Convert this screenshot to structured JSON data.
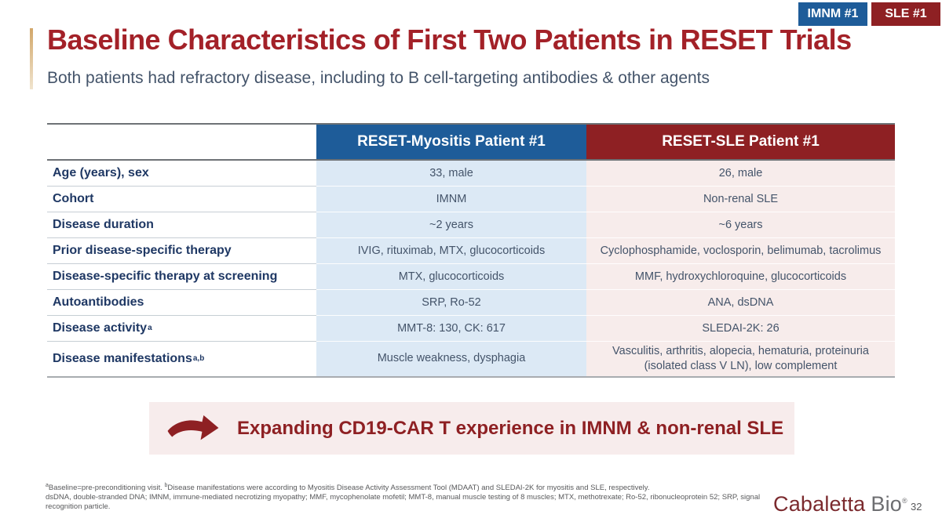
{
  "badges": [
    {
      "label": "IMNM #1",
      "color": "#1E5C99"
    },
    {
      "label": "SLE #1",
      "color": "#8E2023"
    }
  ],
  "header": {
    "title": "Baseline Characteristics of First Two Patients in RESET Trials",
    "subtitle": "Both patients had refractory disease, including to B cell-targeting antibodies & other agents"
  },
  "table": {
    "columns": {
      "label": "",
      "myositis": "RESET-Myositis Patient #1",
      "sle": "RESET-SLE Patient #1"
    },
    "rows": [
      {
        "label": "Age (years), sex",
        "sup": "",
        "myositis": "33, male",
        "sle": "26, male"
      },
      {
        "label": "Cohort",
        "sup": "",
        "myositis": "IMNM",
        "sle": "Non-renal SLE"
      },
      {
        "label": "Disease duration",
        "sup": "",
        "myositis": "~2 years",
        "sle": "~6 years"
      },
      {
        "label": "Prior disease-specific therapy",
        "sup": "",
        "myositis": "IVIG, rituximab, MTX, glucocorticoids",
        "sle": "Cyclophosphamide, voclosporin, belimumab, tacrolimus"
      },
      {
        "label": "Disease-specific therapy at screening",
        "sup": "",
        "myositis": "MTX, glucocorticoids",
        "sle": "MMF, hydroxychloroquine, glucocorticoids"
      },
      {
        "label": "Autoantibodies",
        "sup": "",
        "myositis": "SRP, Ro-52",
        "sle": "ANA, dsDNA"
      },
      {
        "label": "Disease activity",
        "sup": "a",
        "myositis": "MMT-8: 130, CK: 617",
        "sle": "SLEDAI-2K: 26"
      },
      {
        "label": "Disease manifestations",
        "sup": "a,b",
        "myositis": "Muscle weakness, dysphagia",
        "sle": "Vasculitis, arthritis, alopecia, hematuria, proteinuria (isolated class V LN), low complement"
      }
    ]
  },
  "callout": {
    "text": "Expanding CD19-CAR T experience in IMNM & non-renal SLE",
    "arrow_icon": "swoosh-arrow-right",
    "background": "#F7ECEC",
    "text_color": "#8E2023"
  },
  "footnotes": {
    "sup_a": "a",
    "line1_a": "Baseline=pre-preconditioning visit. ",
    "sup_b": "b",
    "line1_b": "Disease manifestations were according to Myositis Disease Activity Assessment Tool (MDAAT) and SLEDAI-2K for myositis and SLE, respectively.",
    "line2": "dsDNA, double-stranded DNA; IMNM, immune-mediated necrotizing myopathy; MMF, mycophenolate mofetil; MMT-8, manual muscle testing of 8 muscles; MTX, methotrexate; Ro-52, ribonucleoprotein 52; SRP, signal recognition particle."
  },
  "footer": {
    "logo_primary": "Cabaletta",
    "logo_secondary": "Bio",
    "registered_mark": "®",
    "page_number": "32"
  },
  "colors": {
    "header_blue": "#1E5C99",
    "header_red": "#8E2023",
    "title_red": "#A32128",
    "label_navy": "#1F3864",
    "body_text": "#44546A",
    "light_blue_cell": "#DCE9F5",
    "light_pink_cell": "#F7ECEB",
    "accent_bar_tan": "#D2A76A"
  }
}
